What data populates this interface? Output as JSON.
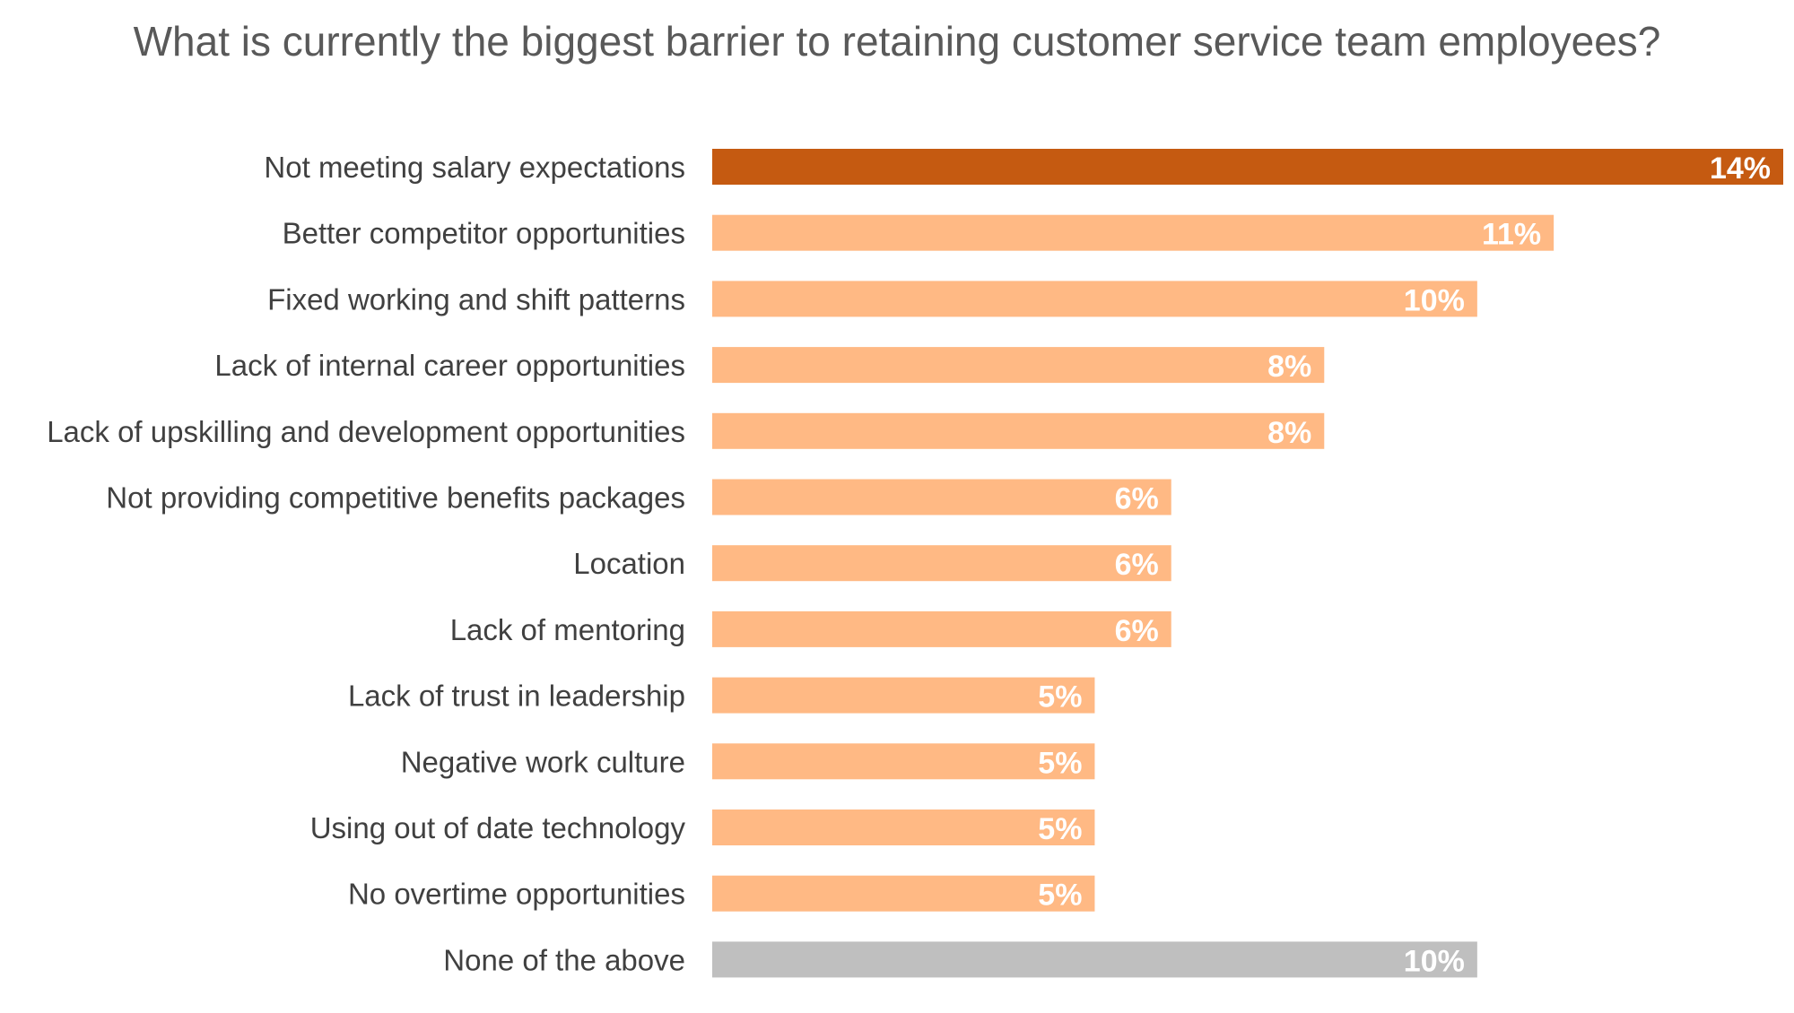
{
  "chart_data": {
    "type": "bar",
    "orientation": "horizontal",
    "title": "What is currently the biggest barrier to retaining customer service team employees?",
    "categories": [
      "Not meeting salary expectations",
      "Better competitor opportunities",
      "Fixed working and shift patterns",
      "Lack of internal career opportunities",
      "Lack of upskilling and development opportunities",
      "Not providing competitive benefits packages",
      "Location",
      "Lack of mentoring",
      "Lack of trust in leadership",
      "Negative work culture",
      "Using out of date technology",
      "No overtime opportunities",
      "None of the above"
    ],
    "values": [
      14,
      11,
      10,
      8,
      8,
      6,
      6,
      6,
      5,
      5,
      5,
      5,
      10
    ],
    "value_labels": [
      "14%",
      "11%",
      "10%",
      "8%",
      "8%",
      "6%",
      "6%",
      "6%",
      "5%",
      "5%",
      "5%",
      "5%",
      "10%"
    ],
    "unit": "%",
    "xlim": [
      0,
      14
    ],
    "grid": false,
    "legend": "none",
    "bar_colors": [
      "#C55A11",
      "#FFB984",
      "#FFB984",
      "#FFB984",
      "#FFB984",
      "#FFB984",
      "#FFB984",
      "#FFB984",
      "#FFB984",
      "#FFB984",
      "#FFB984",
      "#FFB984",
      "#BFBFBF"
    ]
  }
}
